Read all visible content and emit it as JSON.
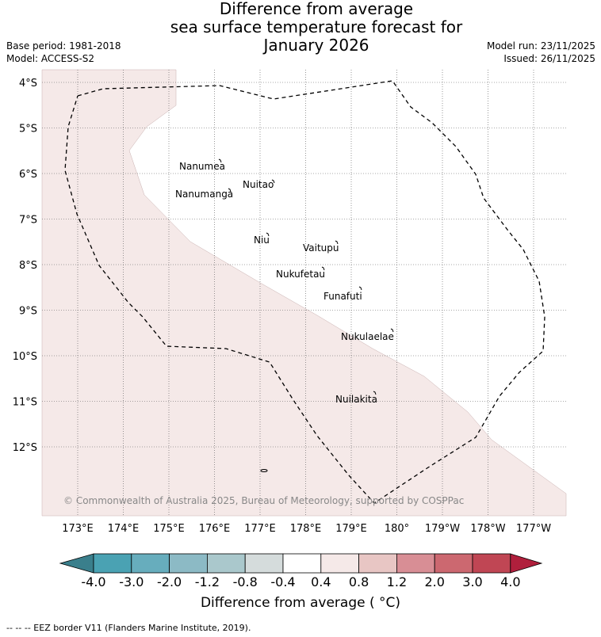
{
  "title": {
    "line1": "Difference from average",
    "line2": "sea surface temperature forecast for",
    "line3": "January 2026"
  },
  "meta": {
    "base_period": "Base period: 1981-2018",
    "model": "Model: ACCESS-S2",
    "model_run": "Model run: 23/11/2025",
    "issued": "Issued: 26/11/2025"
  },
  "map": {
    "lat_labels": [
      "4°S",
      "5°S",
      "6°S",
      "7°S",
      "8°S",
      "9°S",
      "10°S",
      "11°S",
      "12°S"
    ],
    "lon_labels": [
      "173°E",
      "174°E",
      "175°E",
      "176°E",
      "177°E",
      "178°E",
      "179°E",
      "180°",
      "179°W",
      "178°W",
      "177°W"
    ],
    "islands": [
      "Nanumea",
      "Nuitao",
      "Nanumanga",
      "Niu",
      "Vaitupu",
      "Nukufetau",
      "Funafuti",
      "Nukulaelae",
      "Nuilakita"
    ],
    "anomaly_fill_color": "#f5e9e8",
    "copyright": "© Commonwealth of Australia 2025, Bureau of Meteorology, supported by COSPPac"
  },
  "colorbar": {
    "ticks": [
      "-4.0",
      "-3.0",
      "-2.0",
      "-1.2",
      "-0.8",
      "-0.4",
      "0.4",
      "0.8",
      "1.2",
      "2.0",
      "3.0",
      "4.0"
    ],
    "colors": [
      "#3a7f8c",
      "#4aa2b3",
      "#67adbd",
      "#8cbac5",
      "#aac8cc",
      "#d5dcdc",
      "#ffffff",
      "#f5e9e8",
      "#e8c6c4",
      "#d88e95",
      "#cc6870",
      "#c04654",
      "#b01f3c"
    ],
    "label": "Difference from average ( °C)"
  },
  "footer": "-- -- -- EEZ border V11 (Flanders Marine Institute, 2019)."
}
